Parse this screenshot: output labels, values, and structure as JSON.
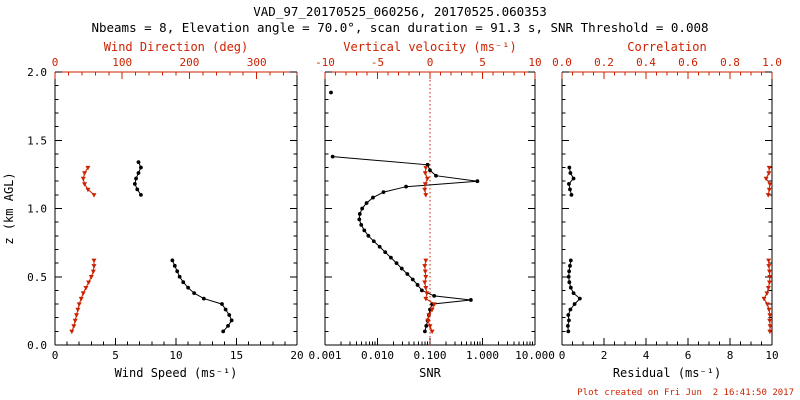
{
  "header": {
    "title": "VAD_97_20170525_060256, 20170525.060353",
    "subtitle": "Nbeams = 8, Elevation angle = 70.0°, scan duration = 91.3 s, SNR Threshold = 0.008"
  },
  "footer": {
    "created": "Plot created on Fri Jun  2 16:41:50 2017"
  },
  "colors": {
    "accent_red": "#cc2200",
    "black": "#000000",
    "background": "#ffffff"
  },
  "chart_data": {
    "type": "line",
    "ylabel": "z (km AGL)",
    "ylim": [
      0.0,
      2.0
    ],
    "yticks": [
      0.0,
      0.5,
      1.0,
      1.5,
      2.0
    ],
    "ytick_labels": [
      "0.0",
      "0.5",
      "1.0",
      "1.5",
      "2.0"
    ],
    "y_minor_step": 0.1,
    "panels": [
      {
        "id": "wind-speed-direction",
        "bottom_axis": {
          "label": "Wind Speed (ms⁻¹)",
          "min": 0,
          "max": 20,
          "scale": "linear",
          "ticks": [
            0,
            5,
            10,
            15,
            20
          ],
          "tick_labels": [
            "0",
            "5",
            "10",
            "15",
            "20"
          ],
          "minor_step": 1,
          "color": "black"
        },
        "top_axis": {
          "label": "Wind Direction (deg)",
          "min": 0,
          "max": 360,
          "scale": "linear",
          "ticks": [
            0,
            100,
            200,
            300
          ],
          "tick_labels": [
            "0",
            "100",
            "200",
            "300"
          ],
          "minor_step": 20,
          "color": "red"
        },
        "series": [
          {
            "name": "wind-speed",
            "axis": "bottom",
            "color": "black",
            "marker": "dot",
            "segments": [
              [
                [
                  0.1,
                  13.9
                ],
                [
                  0.14,
                  14.3
                ],
                [
                  0.18,
                  14.6
                ],
                [
                  0.22,
                  14.4
                ],
                [
                  0.26,
                  14.1
                ],
                [
                  0.3,
                  13.8
                ],
                [
                  0.34,
                  12.3
                ],
                [
                  0.38,
                  11.5
                ],
                [
                  0.42,
                  11.0
                ],
                [
                  0.46,
                  10.6
                ],
                [
                  0.5,
                  10.3
                ],
                [
                  0.54,
                  10.1
                ],
                [
                  0.58,
                  9.9
                ],
                [
                  0.62,
                  9.7
                ]
              ],
              [
                [
                  1.1,
                  7.1
                ],
                [
                  1.14,
                  6.8
                ],
                [
                  1.18,
                  6.6
                ],
                [
                  1.22,
                  6.7
                ],
                [
                  1.26,
                  6.9
                ],
                [
                  1.3,
                  7.1
                ],
                [
                  1.34,
                  6.9
                ]
              ]
            ]
          },
          {
            "name": "wind-direction",
            "axis": "top",
            "color": "red",
            "marker": "tri",
            "segments": [
              [
                [
                  0.1,
                  25
                ],
                [
                  0.14,
                  28
                ],
                [
                  0.18,
                  30
                ],
                [
                  0.22,
                  32
                ],
                [
                  0.26,
                  34
                ],
                [
                  0.3,
                  36
                ],
                [
                  0.34,
                  39
                ],
                [
                  0.38,
                  42
                ],
                [
                  0.42,
                  46
                ],
                [
                  0.46,
                  50
                ],
                [
                  0.5,
                  54
                ],
                [
                  0.54,
                  57
                ],
                [
                  0.58,
                  58
                ],
                [
                  0.62,
                  58
                ]
              ],
              [
                [
                  1.1,
                  58
                ],
                [
                  1.14,
                  49
                ],
                [
                  1.18,
                  44
                ],
                [
                  1.22,
                  42
                ],
                [
                  1.26,
                  44
                ],
                [
                  1.3,
                  49
                ]
              ]
            ]
          }
        ]
      },
      {
        "id": "snr-vertical-velocity",
        "bottom_axis": {
          "label": "SNR",
          "min": 0.001,
          "max": 10.0,
          "scale": "log",
          "ticks": [
            0.001,
            0.01,
            0.1,
            1.0,
            10.0
          ],
          "tick_labels": [
            "0.001",
            "0.010",
            "0.100",
            "1.000",
            "10.000"
          ],
          "color": "black"
        },
        "top_axis": {
          "label": "Vertical velocity (ms⁻¹)",
          "min": -10,
          "max": 10,
          "scale": "linear",
          "ticks": [
            -10,
            -5,
            0,
            5,
            10
          ],
          "tick_labels": [
            "-10",
            "-5",
            "0",
            "5",
            "10"
          ],
          "minor_step": 1,
          "color": "red"
        },
        "ref_line": {
          "axis": "top",
          "value": 0,
          "style": "dotted",
          "color": "red"
        },
        "series": [
          {
            "name": "snr",
            "axis": "bottom",
            "color": "black",
            "marker": "dot",
            "segments": [
              [
                [
                  0.1,
                  0.08
                ],
                [
                  0.14,
                  0.085
                ],
                [
                  0.18,
                  0.09
                ],
                [
                  0.22,
                  0.095
                ],
                [
                  0.26,
                  0.1
                ],
                [
                  0.3,
                  0.11
                ],
                [
                  0.33,
                  0.6
                ],
                [
                  0.36,
                  0.12
                ],
                [
                  0.4,
                  0.07
                ],
                [
                  0.44,
                  0.058
                ],
                [
                  0.48,
                  0.047
                ],
                [
                  0.52,
                  0.037
                ],
                [
                  0.56,
                  0.029
                ],
                [
                  0.6,
                  0.023
                ],
                [
                  0.64,
                  0.018
                ],
                [
                  0.68,
                  0.014
                ],
                [
                  0.72,
                  0.011
                ],
                [
                  0.76,
                  0.0085
                ],
                [
                  0.8,
                  0.0067
                ],
                [
                  0.84,
                  0.0056
                ],
                [
                  0.88,
                  0.0049
                ],
                [
                  0.92,
                  0.0045
                ],
                [
                  0.96,
                  0.0046
                ],
                [
                  1.0,
                  0.0051
                ],
                [
                  1.04,
                  0.0062
                ],
                [
                  1.08,
                  0.0082
                ],
                [
                  1.12,
                  0.013
                ],
                [
                  1.16,
                  0.035
                ],
                [
                  1.2,
                  0.8
                ],
                [
                  1.24,
                  0.13
                ],
                [
                  1.28,
                  0.1
                ],
                [
                  1.32,
                  0.09
                ],
                [
                  1.38,
                  0.0014
                ]
              ],
              [
                [
                  1.85,
                  0.0013
                ]
              ]
            ]
          },
          {
            "name": "vertical-velocity",
            "axis": "top",
            "color": "red",
            "marker": "tri",
            "segments": [
              [
                [
                  0.1,
                  0.2
                ],
                [
                  0.14,
                  0.0
                ],
                [
                  0.18,
                  -0.2
                ],
                [
                  0.22,
                  -0.1
                ],
                [
                  0.26,
                  0.2
                ],
                [
                  0.3,
                  0.4
                ],
                [
                  0.34,
                  -0.4
                ],
                [
                  0.38,
                  -0.3
                ],
                [
                  0.42,
                  -0.4
                ],
                [
                  0.46,
                  -0.5
                ],
                [
                  0.5,
                  -0.4
                ],
                [
                  0.54,
                  -0.45
                ],
                [
                  0.58,
                  -0.5
                ],
                [
                  0.62,
                  -0.4
                ]
              ],
              [
                [
                  1.1,
                  -0.4
                ],
                [
                  1.14,
                  -0.5
                ],
                [
                  1.18,
                  -0.45
                ],
                [
                  1.22,
                  -0.25
                ],
                [
                  1.26,
                  -0.45
                ],
                [
                  1.3,
                  -0.4
                ]
              ]
            ]
          }
        ]
      },
      {
        "id": "residual-correlation",
        "bottom_axis": {
          "label": "Residual (ms⁻¹)",
          "min": 0,
          "max": 10,
          "scale": "linear",
          "ticks": [
            0,
            2,
            4,
            6,
            8,
            10
          ],
          "tick_labels": [
            "0",
            "2",
            "4",
            "6",
            "8",
            "10"
          ],
          "minor_step": 0.5,
          "color": "black"
        },
        "top_axis": {
          "label": "Correlation",
          "min": 0.0,
          "max": 1.0,
          "scale": "linear",
          "ticks": [
            0.0,
            0.2,
            0.4,
            0.6,
            0.8,
            1.0
          ],
          "tick_labels": [
            "0.0",
            "0.2",
            "0.4",
            "0.6",
            "0.8",
            "1.0"
          ],
          "minor_step": 0.05,
          "color": "red"
        },
        "series": [
          {
            "name": "residual",
            "axis": "bottom",
            "color": "black",
            "marker": "dot",
            "segments": [
              [
                [
                  0.1,
                  0.3
                ],
                [
                  0.14,
                  0.28
                ],
                [
                  0.18,
                  0.33
                ],
                [
                  0.22,
                  0.3
                ],
                [
                  0.26,
                  0.4
                ],
                [
                  0.3,
                  0.6
                ],
                [
                  0.34,
                  0.85
                ],
                [
                  0.38,
                  0.55
                ],
                [
                  0.42,
                  0.42
                ],
                [
                  0.46,
                  0.35
                ],
                [
                  0.5,
                  0.32
                ],
                [
                  0.54,
                  0.34
                ],
                [
                  0.58,
                  0.38
                ],
                [
                  0.62,
                  0.42
                ]
              ],
              [
                [
                  1.1,
                  0.45
                ],
                [
                  1.14,
                  0.38
                ],
                [
                  1.18,
                  0.33
                ],
                [
                  1.22,
                  0.55
                ],
                [
                  1.26,
                  0.4
                ],
                [
                  1.3,
                  0.35
                ]
              ]
            ]
          },
          {
            "name": "correlation",
            "axis": "top",
            "color": "red",
            "marker": "tri",
            "segments": [
              [
                [
                  0.1,
                  0.99
                ],
                [
                  0.14,
                  0.991
                ],
                [
                  0.18,
                  0.989
                ],
                [
                  0.22,
                  0.99
                ],
                [
                  0.26,
                  0.986
                ],
                [
                  0.3,
                  0.978
                ],
                [
                  0.34,
                  0.962
                ],
                [
                  0.38,
                  0.976
                ],
                [
                  0.42,
                  0.983
                ],
                [
                  0.46,
                  0.988
                ],
                [
                  0.5,
                  0.99
                ],
                [
                  0.54,
                  0.988
                ],
                [
                  0.58,
                  0.985
                ],
                [
                  0.62,
                  0.984
                ]
              ],
              [
                [
                  1.1,
                  0.982
                ],
                [
                  1.14,
                  0.987
                ],
                [
                  1.18,
                  0.99
                ],
                [
                  1.22,
                  0.972
                ],
                [
                  1.26,
                  0.985
                ],
                [
                  1.3,
                  0.987
                ]
              ]
            ]
          }
        ]
      }
    ]
  }
}
